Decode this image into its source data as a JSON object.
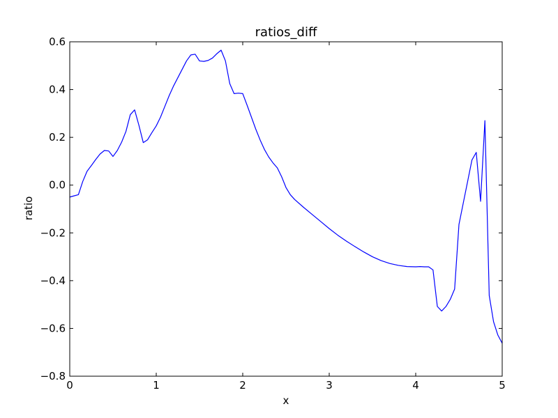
{
  "chart_data": {
    "type": "line",
    "title": "ratios_diff",
    "xlabel": "x",
    "ylabel": "ratio",
    "xlim": [
      0,
      5
    ],
    "ylim": [
      -0.8,
      0.6
    ],
    "xticks": [
      0,
      1,
      2,
      3,
      4,
      5
    ],
    "xtick_labels": [
      "0",
      "1",
      "2",
      "3",
      "4",
      "5"
    ],
    "yticks": [
      -0.8,
      -0.6,
      -0.4,
      -0.2,
      0.0,
      0.2,
      0.4,
      0.6
    ],
    "ytick_labels": [
      "−0.8",
      "−0.6",
      "−0.4",
      "−0.2",
      "0.0",
      "0.2",
      "0.4",
      "0.6"
    ],
    "grid": false,
    "series": [
      {
        "color": "#0000ff",
        "x": [
          0.0,
          0.05,
          0.1,
          0.15,
          0.2,
          0.25,
          0.3,
          0.35,
          0.4,
          0.45,
          0.5,
          0.55,
          0.6,
          0.65,
          0.7,
          0.75,
          0.8,
          0.85,
          0.9,
          0.95,
          1.0,
          1.05,
          1.1,
          1.15,
          1.2,
          1.25,
          1.3,
          1.35,
          1.4,
          1.45,
          1.5,
          1.55,
          1.6,
          1.65,
          1.7,
          1.75,
          1.8,
          1.85,
          1.9,
          1.95,
          2.0,
          2.05,
          2.1,
          2.15,
          2.2,
          2.25,
          2.3,
          2.35,
          2.4,
          2.45,
          2.5,
          2.55,
          2.6,
          2.7,
          2.8,
          2.9,
          3.0,
          3.1,
          3.2,
          3.3,
          3.4,
          3.5,
          3.6,
          3.7,
          3.8,
          3.9,
          4.0,
          4.05,
          4.1,
          4.15,
          4.2,
          4.25,
          4.3,
          4.35,
          4.4,
          4.45,
          4.5,
          4.55,
          4.6,
          4.65,
          4.7,
          4.75,
          4.8,
          4.85,
          4.9,
          4.95,
          5.0
        ],
        "y": [
          -0.05,
          -0.045,
          -0.04,
          0.015,
          0.058,
          0.082,
          0.107,
          0.13,
          0.145,
          0.143,
          0.12,
          0.145,
          0.18,
          0.225,
          0.295,
          0.315,
          0.25,
          0.178,
          0.19,
          0.22,
          0.248,
          0.285,
          0.33,
          0.375,
          0.415,
          0.45,
          0.485,
          0.52,
          0.545,
          0.548,
          0.52,
          0.518,
          0.522,
          0.532,
          0.55,
          0.565,
          0.52,
          0.425,
          0.383,
          0.385,
          0.383,
          0.335,
          0.285,
          0.235,
          0.19,
          0.15,
          0.118,
          0.093,
          0.072,
          0.035,
          -0.01,
          -0.04,
          -0.06,
          -0.092,
          -0.122,
          -0.152,
          -0.182,
          -0.21,
          -0.235,
          -0.258,
          -0.28,
          -0.3,
          -0.316,
          -0.328,
          -0.336,
          -0.341,
          -0.342,
          -0.341,
          -0.342,
          -0.342,
          -0.355,
          -0.508,
          -0.527,
          -0.508,
          -0.478,
          -0.435,
          -0.165,
          -0.075,
          0.015,
          0.105,
          0.137,
          -0.068,
          0.27,
          -0.462,
          -0.572,
          -0.628,
          -0.662
        ]
      }
    ]
  }
}
